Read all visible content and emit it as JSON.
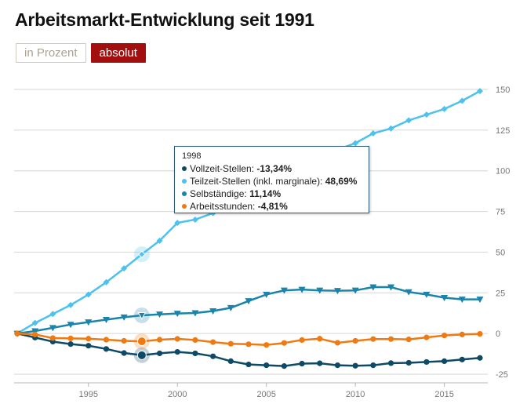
{
  "title": "Arbeitsmarkt-Entwicklung seit 1991",
  "buttons": {
    "percent_label": "in Prozent",
    "absolute_label": "absolut"
  },
  "colors": {
    "vollzeit": "#0e4a66",
    "teilzeit": "#4cc2ec",
    "selbstaendige": "#1a84ab",
    "arbeitsstunden": "#f07a12",
    "grid": "#d6d6d6",
    "axis_text": "#777777",
    "active_button": "#a30f0f"
  },
  "tooltip": {
    "year": "1998",
    "rows": [
      {
        "label": "Vollzeit-Stellen:",
        "value": "-13,34%",
        "color": "#0e4a66"
      },
      {
        "label": "Teilzeit-Stellen (inkl. marginale):",
        "value": "48,69%",
        "color": "#4cc2ec"
      },
      {
        "label": "Selbständige:",
        "value": "11,14%",
        "color": "#1a84ab"
      },
      {
        "label": "Arbeitsstunden:",
        "value": "-4,81%",
        "color": "#f07a12"
      }
    ]
  },
  "chart_data": {
    "type": "line",
    "title": "Arbeitsmarkt-Entwicklung seit 1991",
    "xlabel": "",
    "ylabel": "",
    "x": [
      1991,
      1992,
      1993,
      1994,
      1995,
      1996,
      1997,
      1998,
      1999,
      2000,
      2001,
      2002,
      2003,
      2004,
      2005,
      2006,
      2007,
      2008,
      2009,
      2010,
      2011,
      2012,
      2013,
      2014,
      2015,
      2016,
      2017
    ],
    "xticks": [
      1995,
      2000,
      2005,
      2010,
      2015
    ],
    "ylim": [
      -25,
      150
    ],
    "yticks": [
      -25,
      0,
      25,
      50,
      75,
      100,
      125,
      150
    ],
    "highlight_x": 1998,
    "series": [
      {
        "name": "Vollzeit-Stellen",
        "color": "#0e4a66",
        "marker": "circle",
        "values": [
          0,
          -2.5,
          -5,
          -6.5,
          -7.5,
          -9.5,
          -12,
          -13.34,
          -12.2,
          -11.3,
          -12.2,
          -14,
          -17,
          -19,
          -19.5,
          -20,
          -18.5,
          -18.3,
          -19.5,
          -19.8,
          -19.5,
          -18.2,
          -18,
          -17.5,
          -17,
          -16,
          -15
        ]
      },
      {
        "name": "Teilzeit-Stellen (inkl. marginale)",
        "color": "#4cc2ec",
        "marker": "diamond",
        "values": [
          0,
          6.5,
          12,
          17.5,
          24,
          31.5,
          40,
          48.69,
          57,
          68,
          70,
          74,
          76.5,
          82,
          86,
          92,
          103,
          107,
          113,
          117,
          123,
          126,
          131,
          134.5,
          138,
          143,
          149
        ]
      },
      {
        "name": "Selbständige",
        "color": "#1a84ab",
        "marker": "triangle-down",
        "values": [
          0,
          1.5,
          3.5,
          5.5,
          7,
          8.5,
          10,
          11.14,
          11.8,
          12.3,
          12.6,
          13.8,
          15.8,
          20,
          24,
          26.5,
          27,
          26.5,
          26.3,
          26.5,
          28.5,
          28.5,
          25.5,
          24,
          22,
          21,
          21
        ]
      },
      {
        "name": "Arbeitsstunden",
        "color": "#f07a12",
        "marker": "circle",
        "values": [
          0,
          -0.6,
          -2.8,
          -3,
          -3.2,
          -3.8,
          -4.5,
          -4.81,
          -3.8,
          -3.3,
          -4,
          -5.3,
          -6.3,
          -6.6,
          -7,
          -5.8,
          -4,
          -3.2,
          -5.7,
          -4.5,
          -3.4,
          -3.4,
          -3.6,
          -2.4,
          -1.2,
          -0.6,
          -0.2
        ]
      }
    ]
  }
}
